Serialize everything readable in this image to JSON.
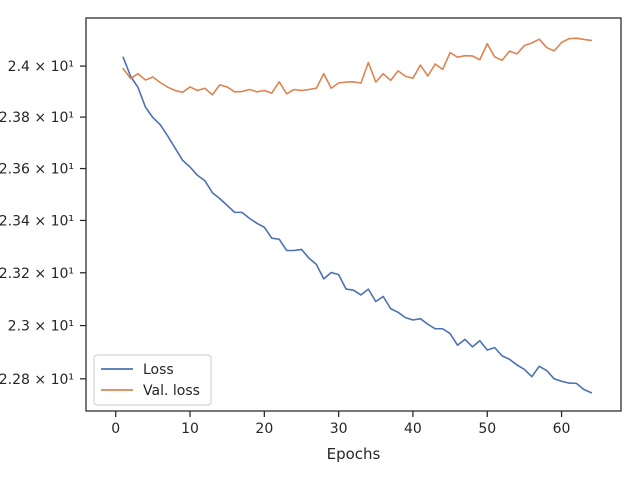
{
  "chart_data": {
    "type": "line",
    "title": "",
    "xlabel": "Epochs",
    "ylabel": "",
    "xlim": [
      -4,
      68
    ],
    "ylim": [
      22.68,
      24.19
    ],
    "y_scale": "log",
    "grid": false,
    "legend": {
      "placement": "lower-left"
    },
    "x_ticks": [
      {
        "value": 0,
        "label": "0"
      },
      {
        "value": 10,
        "label": "10"
      },
      {
        "value": 20,
        "label": "20"
      },
      {
        "value": 30,
        "label": "30"
      },
      {
        "value": 40,
        "label": "40"
      },
      {
        "value": 50,
        "label": "50"
      },
      {
        "value": 60,
        "label": "60"
      }
    ],
    "y_ticks": [
      {
        "value": 22.8,
        "label": "2.28 × 10¹"
      },
      {
        "value": 23.0,
        "label": "2.3 × 10¹"
      },
      {
        "value": 23.2,
        "label": "2.32 × 10¹"
      },
      {
        "value": 23.4,
        "label": "2.34 × 10¹"
      },
      {
        "value": 23.6,
        "label": "2.36 × 10¹"
      },
      {
        "value": 23.8,
        "label": "2.38 × 10¹"
      },
      {
        "value": 24.0,
        "label": "2.4 × 10¹"
      }
    ],
    "x": [
      1,
      2,
      3,
      4,
      5,
      6,
      7,
      8,
      9,
      10,
      11,
      12,
      13,
      14,
      15,
      16,
      17,
      18,
      19,
      20,
      21,
      22,
      23,
      24,
      25,
      26,
      27,
      28,
      29,
      30,
      31,
      32,
      33,
      34,
      35,
      36,
      37,
      38,
      39,
      40,
      41,
      42,
      43,
      44,
      45,
      46,
      47,
      48,
      49,
      50,
      51,
      52,
      53,
      54,
      55,
      56,
      57,
      58,
      59,
      60,
      61,
      62,
      63,
      64
    ],
    "series": [
      {
        "name": "Loss",
        "color": "#4c72b0",
        "values": [
          24.035,
          23.96,
          23.916,
          23.839,
          23.798,
          23.77,
          23.726,
          23.679,
          23.632,
          23.606,
          23.574,
          23.553,
          23.507,
          23.484,
          23.458,
          23.431,
          23.431,
          23.408,
          23.389,
          23.374,
          23.332,
          23.328,
          23.285,
          23.285,
          23.289,
          23.256,
          23.232,
          23.177,
          23.201,
          23.193,
          23.138,
          23.134,
          23.116,
          23.138,
          23.091,
          23.11,
          23.064,
          23.05,
          23.03,
          23.021,
          23.026,
          23.005,
          22.988,
          22.988,
          22.97,
          22.926,
          22.948,
          22.92,
          22.943,
          22.908,
          22.917,
          22.886,
          22.873,
          22.852,
          22.835,
          22.808,
          22.847,
          22.831,
          22.8,
          22.791,
          22.784,
          22.783,
          22.76,
          22.748
        ]
      },
      {
        "name": "Val. loss",
        "color": "#dd8452",
        "values": [
          23.99,
          23.951,
          23.97,
          23.945,
          23.957,
          23.935,
          23.917,
          23.904,
          23.897,
          23.918,
          23.904,
          23.913,
          23.887,
          23.926,
          23.918,
          23.899,
          23.9,
          23.908,
          23.899,
          23.904,
          23.894,
          23.938,
          23.891,
          23.908,
          23.904,
          23.908,
          23.913,
          23.97,
          23.913,
          23.934,
          23.937,
          23.938,
          23.933,
          24.014,
          23.937,
          23.97,
          23.944,
          23.981,
          23.96,
          23.952,
          24.004,
          23.961,
          24.008,
          23.987,
          24.053,
          24.035,
          24.041,
          24.04,
          24.025,
          24.088,
          24.036,
          24.023,
          24.059,
          24.048,
          24.081,
          24.091,
          24.106,
          24.073,
          24.06,
          24.093,
          24.108,
          24.11,
          24.105,
          24.101
        ]
      }
    ]
  }
}
